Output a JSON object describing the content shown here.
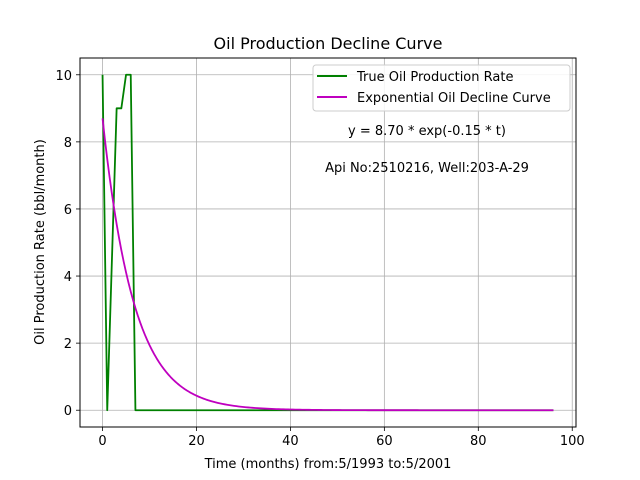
{
  "chart_data": {
    "type": "line",
    "title": "Oil Production Decline Curve",
    "xlabel": "Time (months) from:5/1993 to:5/2001",
    "ylabel": "Oil Production Rate (bbl/month)",
    "xlim": [
      -4.8,
      100.8
    ],
    "ylim": [
      -0.5,
      10.5
    ],
    "xticks": [
      0,
      20,
      40,
      60,
      80,
      100
    ],
    "yticks": [
      0,
      2,
      4,
      6,
      8,
      10
    ],
    "grid": true,
    "legend_position": "top-right",
    "series": [
      {
        "name": "True Oil Production Rate",
        "color": "#008000",
        "x": [
          0,
          1,
          2,
          3,
          4,
          5,
          6,
          7,
          8,
          10,
          20,
          30,
          40,
          50,
          60,
          70,
          80,
          90,
          96
        ],
        "y": [
          10,
          0,
          4.5,
          9,
          9,
          10,
          10,
          0,
          0,
          0,
          0,
          0,
          0,
          0,
          0,
          0,
          0,
          0,
          0
        ]
      },
      {
        "name": "Exponential Oil Decline Curve",
        "color": "#bf00bf",
        "model": "exponential",
        "a": 8.7,
        "b": -0.15,
        "x_start": 0,
        "x_end": 96
      }
    ],
    "annotations": [
      "y = 8.70 * exp(-0.15 * t)",
      "Api No:2510216, Well:203-A-29"
    ]
  }
}
